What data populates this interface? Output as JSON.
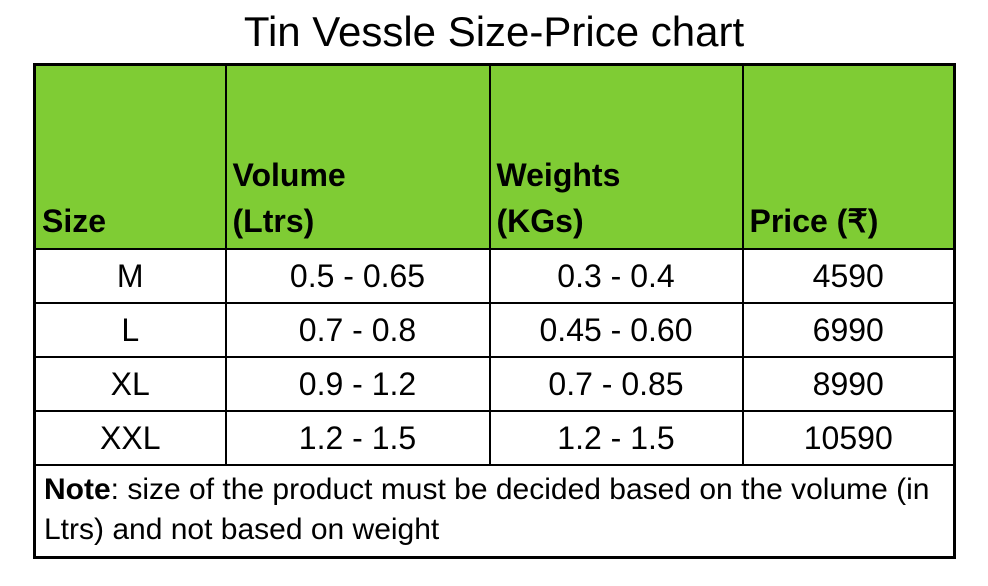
{
  "title": "Tin Vessle Size-Price chart",
  "table": {
    "header": [
      "Size",
      "Volume (Ltrs)",
      "Weights (KGs)",
      "Price (₹)"
    ],
    "rows": [
      [
        "M",
        "0.5 - 0.65",
        "0.3 - 0.4",
        "4590"
      ],
      [
        "L",
        "0.7 - 0.8",
        "0.45 - 0.60",
        "6990"
      ],
      [
        "XL",
        "0.9 - 1.2",
        "0.7 - 0.85",
        "8990"
      ],
      [
        "XXL",
        "1.2 - 1.5",
        "1.2 - 1.5",
        "10590"
      ]
    ]
  },
  "note": {
    "label": "Note",
    "text": ": size of the product must be decided based on the volume (in Ltrs) and not based on weight"
  }
}
